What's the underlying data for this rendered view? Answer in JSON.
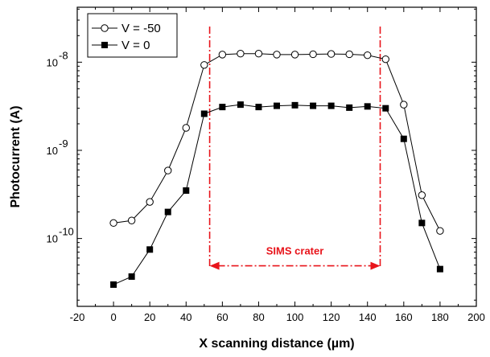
{
  "chart_data": {
    "type": "scatter",
    "xlabel": "X scanning distance (µm)",
    "ylabel": "Photocurrent (A)",
    "xlim": [
      -20,
      200
    ],
    "ylim": [
      1.7e-11,
      4.2e-08
    ],
    "yscale": "log",
    "x_ticks": [
      "-20",
      "0",
      "20",
      "40",
      "60",
      "80",
      "100",
      "120",
      "140",
      "160",
      "180",
      "200"
    ],
    "y_ticks": [
      {
        "base": "10",
        "exp": "-10"
      },
      {
        "base": "10",
        "exp": "-9"
      },
      {
        "base": "10",
        "exp": "-8"
      }
    ],
    "legend_position": "top-left",
    "series": [
      {
        "name": "V = -50",
        "marker": "open-circle",
        "x": [
          0,
          10,
          20,
          30,
          40,
          50,
          60,
          70,
          80,
          90,
          100,
          110,
          120,
          130,
          140,
          150,
          160,
          170,
          180
        ],
        "y": [
          1.5e-10,
          1.6e-10,
          2.6e-10,
          5.9e-10,
          1.8e-09,
          9.3e-09,
          1.22e-08,
          1.25e-08,
          1.25e-08,
          1.22e-08,
          1.22e-08,
          1.23e-08,
          1.24e-08,
          1.23e-08,
          1.2e-08,
          1.08e-08,
          3.3e-09,
          3.1e-10,
          1.22e-10
        ]
      },
      {
        "name": "V = 0",
        "marker": "filled-square",
        "x": [
          0,
          10,
          20,
          30,
          40,
          50,
          60,
          70,
          80,
          90,
          100,
          110,
          120,
          130,
          140,
          150,
          160,
          170,
          180
        ],
        "y": [
          3e-11,
          3.7e-11,
          7.5e-11,
          2e-10,
          3.5e-10,
          2.6e-09,
          3.1e-09,
          3.3e-09,
          3.1e-09,
          3.2e-09,
          3.25e-09,
          3.2e-09,
          3.2e-09,
          3.05e-09,
          3.15e-09,
          3e-09,
          1.35e-09,
          1.5e-10,
          4.5e-11
        ]
      }
    ],
    "annotation": {
      "text": "SIMS crater",
      "x_start": 53,
      "x_end": 147,
      "y": 4.9e-11,
      "color": "#e8141b"
    }
  }
}
